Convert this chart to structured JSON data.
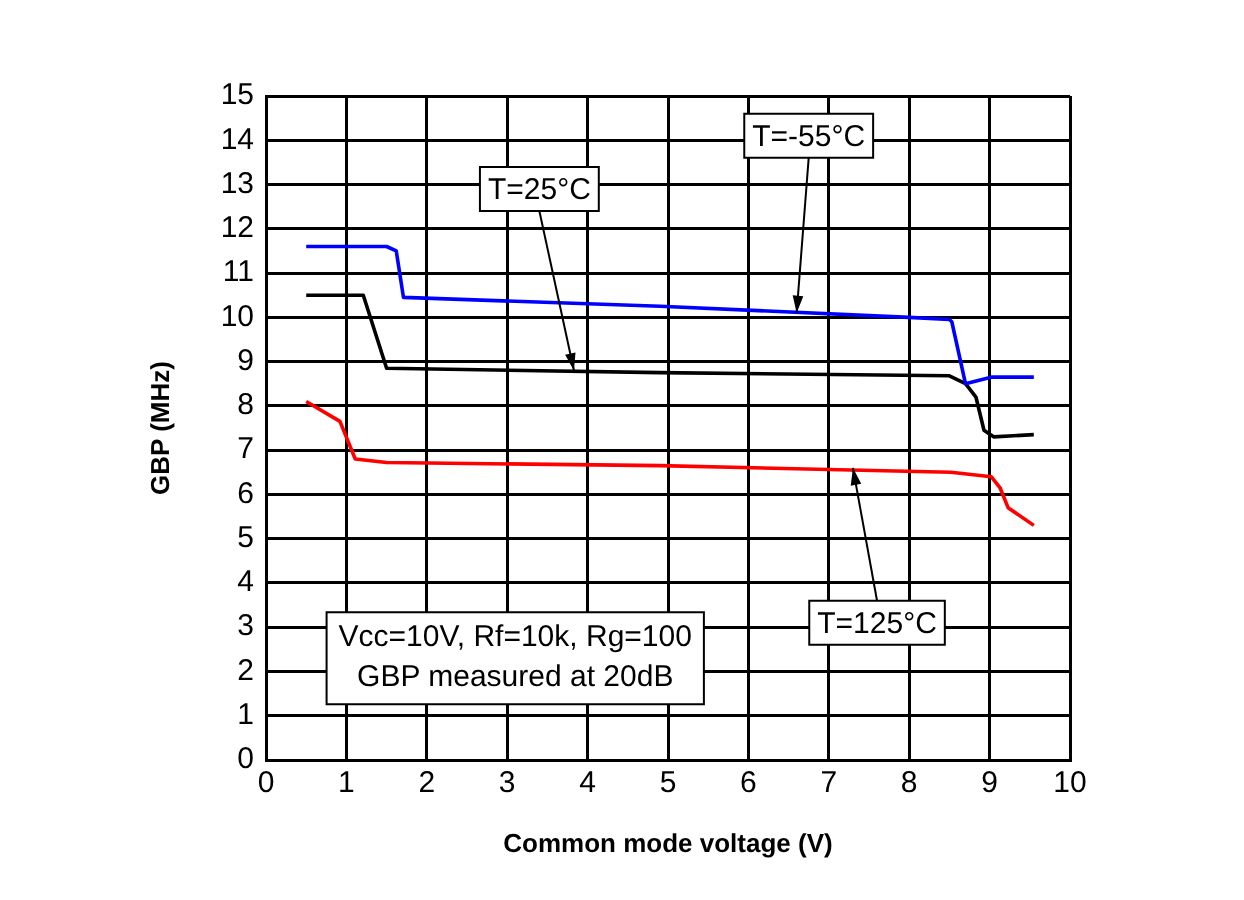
{
  "chart_data": {
    "type": "line",
    "xlabel": "Common mode voltage (V)",
    "ylabel": "GBP (MHz)",
    "xlim": [
      0,
      10
    ],
    "xticks": [
      0,
      1,
      2,
      3,
      4,
      5,
      6,
      7,
      8,
      9,
      10
    ],
    "ylim": [
      0,
      15
    ],
    "yticks": [
      0,
      1,
      2,
      3,
      4,
      5,
      6,
      7,
      8,
      9,
      10,
      11,
      12,
      13,
      14,
      15
    ],
    "grid": true,
    "legend": false,
    "marker": "none",
    "line_style": "solid",
    "series": [
      {
        "color": "#0000ff",
        "x": [
          0.5,
          1.5,
          1.62,
          1.71,
          4.9,
          8.0,
          8.5,
          8.53,
          8.7,
          9.03,
          9.55
        ],
        "values": [
          11.6,
          11.6,
          11.5,
          10.45,
          10.25,
          10.0,
          9.95,
          9.9,
          8.5,
          8.65,
          8.65
        ]
      },
      {
        "color": "#000000",
        "x": [
          0.5,
          1.21,
          1.5,
          4.9,
          8.5,
          8.7,
          8.83,
          8.93,
          9.05,
          9.55
        ],
        "values": [
          10.5,
          10.5,
          8.85,
          8.75,
          8.68,
          8.5,
          8.2,
          7.45,
          7.3,
          7.35
        ]
      },
      {
        "color": "#ff0000",
        "x": [
          0.5,
          0.92,
          1.11,
          1.5,
          4.9,
          8.52,
          9.02,
          9.13,
          9.23,
          9.55
        ],
        "values": [
          8.1,
          7.65,
          6.8,
          6.72,
          6.65,
          6.5,
          6.4,
          6.15,
          5.7,
          5.3
        ]
      }
    ],
    "annotations": [
      {
        "text": "T=25°C",
        "x": 3.83,
        "y": 8.8
      },
      {
        "text": "T=-55°C",
        "x": 6.6,
        "y": 10.1
      },
      {
        "text": "T=125°C",
        "x": 7.3,
        "y": 6.6
      },
      "Vcc=10V, Rf=10k, Rg=100\nGBP measured at 20dB"
    ]
  }
}
